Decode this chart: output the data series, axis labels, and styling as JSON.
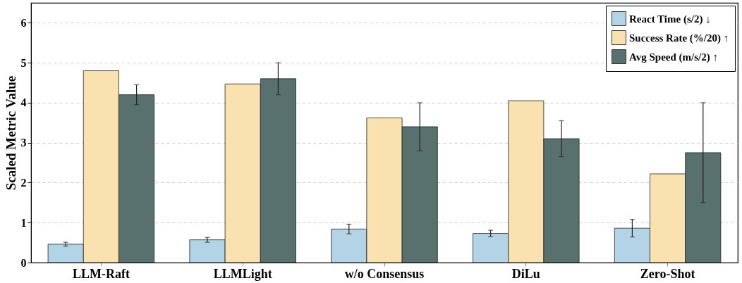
{
  "chart_data": {
    "type": "bar",
    "ylabel": "Scaled Metric Value",
    "categories": [
      "LLM-Raft",
      "LLMLight",
      "w/o Consensus",
      "DiLu",
      "Zero-Shot"
    ],
    "series": [
      {
        "name": "React Time (s/2) ↓",
        "color": "#b3d4e6",
        "values": [
          0.46,
          0.57,
          0.84,
          0.73,
          0.86
        ],
        "errors": [
          0.05,
          0.06,
          0.12,
          0.08,
          0.22
        ]
      },
      {
        "name": "Success Rate (%/20) ↑",
        "color": "#f9e1b0",
        "values": [
          4.8,
          4.47,
          3.62,
          4.05,
          2.22
        ]
      },
      {
        "name": "Avg Speed (m/s/2) ↑",
        "color": "#58706e",
        "values": [
          4.2,
          4.6,
          3.4,
          3.1,
          2.75
        ],
        "errors": [
          0.25,
          0.4,
          0.6,
          0.45,
          1.25
        ]
      }
    ],
    "ylim": [
      0,
      6.5
    ],
    "yticks": [
      0,
      1,
      2,
      3,
      4,
      5,
      6
    ],
    "grid": "y",
    "legend": "top right"
  }
}
